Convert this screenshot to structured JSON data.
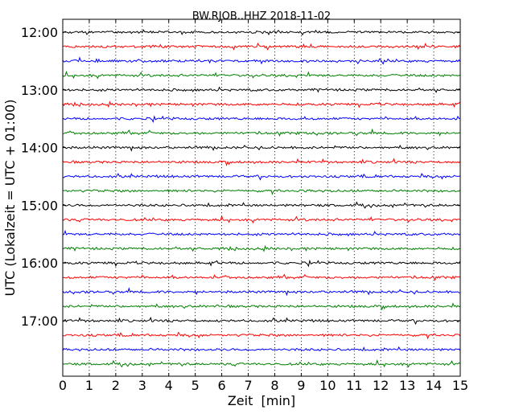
{
  "chart_data": {
    "type": "line",
    "title": "BW.RJOB..HHZ 2018-11-02",
    "xlabel": "Zeit  [min]",
    "ylabel": "UTC (Lokalzeit = UTC + 01:00)",
    "xlim": [
      0,
      15
    ],
    "x_ticks": [
      "0",
      "1",
      "2",
      "3",
      "4",
      "5",
      "6",
      "7",
      "8",
      "9",
      "10",
      "11",
      "12",
      "13",
      "14",
      "15"
    ],
    "y_ticks": [
      "12:00",
      "13:00",
      "14:00",
      "15:00",
      "16:00",
      "17:00"
    ],
    "grid": "vertical dotted at each minute",
    "trace_colors": [
      "#000000",
      "#ff0000",
      "#0000ff",
      "#008000"
    ],
    "series": [
      {
        "start": "12:00",
        "values": [
          0,
          0,
          0,
          0,
          0,
          0,
          0,
          0,
          0,
          0,
          0,
          0,
          0,
          0,
          0,
          0
        ]
      },
      {
        "start": "12:15",
        "values": [
          0,
          0,
          0,
          0,
          0,
          0,
          0,
          0,
          0,
          0,
          0,
          0,
          0,
          0,
          0,
          0
        ]
      },
      {
        "start": "12:30",
        "values": [
          0,
          0,
          0,
          0,
          0,
          0,
          0,
          0,
          0,
          0,
          0,
          0,
          0,
          0,
          0,
          0
        ]
      },
      {
        "start": "12:45",
        "values": [
          0,
          0,
          0,
          0,
          0,
          0,
          0,
          0,
          0,
          0,
          0,
          0,
          0,
          0,
          0,
          0
        ]
      },
      {
        "start": "13:00",
        "values": [
          0,
          0,
          0,
          0,
          0,
          0,
          0,
          0,
          0,
          0,
          0,
          0,
          0,
          0,
          0,
          0
        ]
      },
      {
        "start": "13:15",
        "values": [
          0,
          0,
          0,
          0,
          0,
          0,
          0,
          0,
          0,
          0,
          0,
          0,
          0,
          0,
          0,
          0
        ]
      },
      {
        "start": "13:30",
        "values": [
          0,
          0,
          0,
          0,
          0,
          0,
          0,
          0,
          0,
          0,
          0,
          0,
          0,
          0,
          0,
          0
        ]
      },
      {
        "start": "13:45",
        "values": [
          0,
          0,
          0,
          0,
          0,
          0,
          0,
          0,
          0,
          0,
          0,
          0,
          0,
          0,
          0,
          0
        ]
      },
      {
        "start": "14:00",
        "values": [
          0,
          0,
          0,
          0,
          0,
          0,
          0,
          0,
          0,
          0,
          0,
          0,
          0,
          0,
          0,
          0
        ]
      },
      {
        "start": "14:15",
        "values": [
          0,
          0,
          0,
          0,
          0,
          0,
          0,
          0,
          0,
          0,
          0,
          0,
          0,
          0,
          0,
          0
        ]
      },
      {
        "start": "14:30",
        "values": [
          0,
          0,
          0,
          0,
          0,
          0,
          0,
          0,
          0,
          0,
          0,
          0,
          0,
          0,
          0,
          0
        ]
      },
      {
        "start": "14:45",
        "values": [
          0,
          0,
          0,
          0,
          0,
          0,
          0,
          0,
          0,
          0,
          0,
          0,
          0,
          0,
          0,
          0
        ]
      },
      {
        "start": "15:00",
        "values": [
          0,
          0,
          0,
          0,
          0,
          0,
          0,
          0,
          0,
          0,
          0,
          0,
          0,
          0,
          0,
          0
        ]
      },
      {
        "start": "15:15",
        "values": [
          0,
          0,
          0,
          0,
          0,
          0,
          0,
          0,
          0,
          0,
          0,
          0,
          0,
          0,
          0,
          0
        ]
      },
      {
        "start": "15:30",
        "values": [
          0,
          0,
          0,
          0,
          0,
          0,
          0,
          0,
          0,
          0,
          0,
          0,
          0,
          0,
          0,
          0
        ]
      },
      {
        "start": "15:45",
        "values": [
          0,
          0,
          0,
          0,
          0,
          0,
          0,
          0,
          0,
          0,
          0,
          0,
          0,
          0,
          0,
          0
        ]
      },
      {
        "start": "16:00",
        "values": [
          0,
          0,
          0,
          0,
          0,
          0,
          0,
          0,
          0,
          0,
          0,
          0,
          0,
          0,
          0,
          0
        ]
      },
      {
        "start": "16:15",
        "values": [
          0,
          0,
          0,
          0,
          0,
          0,
          0,
          0,
          0,
          0,
          0,
          0,
          0,
          0,
          0,
          0
        ]
      },
      {
        "start": "16:30",
        "values": [
          0,
          0,
          0,
          0,
          0,
          0,
          0,
          0,
          0,
          0,
          0,
          0,
          0,
          0,
          0,
          0
        ]
      },
      {
        "start": "16:45",
        "values": [
          0,
          0,
          0,
          0,
          0,
          0,
          0,
          0,
          0,
          0,
          0,
          0,
          0,
          0,
          0,
          0
        ]
      },
      {
        "start": "17:00",
        "values": [
          0,
          0,
          0,
          0,
          0,
          0,
          0,
          0,
          0,
          0,
          0,
          0,
          0,
          0,
          0,
          0
        ]
      },
      {
        "start": "17:15",
        "values": [
          0,
          0,
          0,
          0,
          0,
          0,
          0,
          0,
          0,
          0,
          0,
          0,
          0,
          0,
          0,
          0
        ]
      },
      {
        "start": "17:30",
        "values": [
          0,
          0,
          0,
          0,
          0,
          0,
          0,
          0,
          0,
          0,
          0,
          0,
          0,
          0,
          0,
          0
        ]
      },
      {
        "start": "17:45",
        "values": [
          0,
          0,
          0,
          0,
          0,
          0,
          0,
          0,
          0,
          0,
          0,
          0,
          0,
          0,
          0,
          0
        ]
      }
    ]
  }
}
